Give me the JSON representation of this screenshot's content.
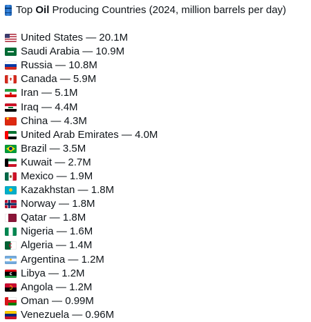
{
  "post": {
    "title_prefix": "Top ",
    "title_bold": "Oil",
    "title_suffix": " Producing Countries (2024, million barrels per day)",
    "icon": "oil-drum-icon"
  },
  "countries": [
    {
      "name": "United States",
      "value": "20.1M",
      "flag": "flag-us-icon"
    },
    {
      "name": "Saudi Arabia",
      "value": "10.9M",
      "flag": "flag-sa-icon"
    },
    {
      "name": "Russia",
      "value": "10.8M",
      "flag": "flag-ru-icon"
    },
    {
      "name": "Canada",
      "value": "5.9M",
      "flag": "flag-ca-icon"
    },
    {
      "name": "Iran",
      "value": "5.1M",
      "flag": "flag-ir-icon"
    },
    {
      "name": "Iraq",
      "value": "4.4M",
      "flag": "flag-iq-icon"
    },
    {
      "name": "China",
      "value": "4.3M",
      "flag": "flag-cn-icon"
    },
    {
      "name": "United Arab Emirates",
      "value": "4.0M",
      "flag": "flag-ae-icon"
    },
    {
      "name": "Brazil",
      "value": "3.5M",
      "flag": "flag-br-icon"
    },
    {
      "name": "Kuwait",
      "value": "2.7M",
      "flag": "flag-kw-icon"
    },
    {
      "name": "Mexico",
      "value": "1.9M",
      "flag": "flag-mx-icon"
    },
    {
      "name": "Kazakhstan",
      "value": "1.8M",
      "flag": "flag-kz-icon"
    },
    {
      "name": "Norway",
      "value": "1.8M",
      "flag": "flag-no-icon"
    },
    {
      "name": "Qatar",
      "value": "1.8M",
      "flag": "flag-qa-icon"
    },
    {
      "name": "Nigeria",
      "value": "1.6M",
      "flag": "flag-ng-icon"
    },
    {
      "name": "Algeria",
      "value": "1.4M",
      "flag": "flag-dz-icon"
    },
    {
      "name": "Argentina",
      "value": "1.2M",
      "flag": "flag-ar-icon"
    },
    {
      "name": "Libya",
      "value": "1.2M",
      "flag": "flag-ly-icon"
    },
    {
      "name": "Angola",
      "value": "1.2M",
      "flag": "flag-ao-icon"
    },
    {
      "name": "Oman",
      "value": "0.99M",
      "flag": "flag-om-icon"
    },
    {
      "name": "Venezuela",
      "value": "0.96M",
      "flag": "flag-ve-icon"
    }
  ]
}
